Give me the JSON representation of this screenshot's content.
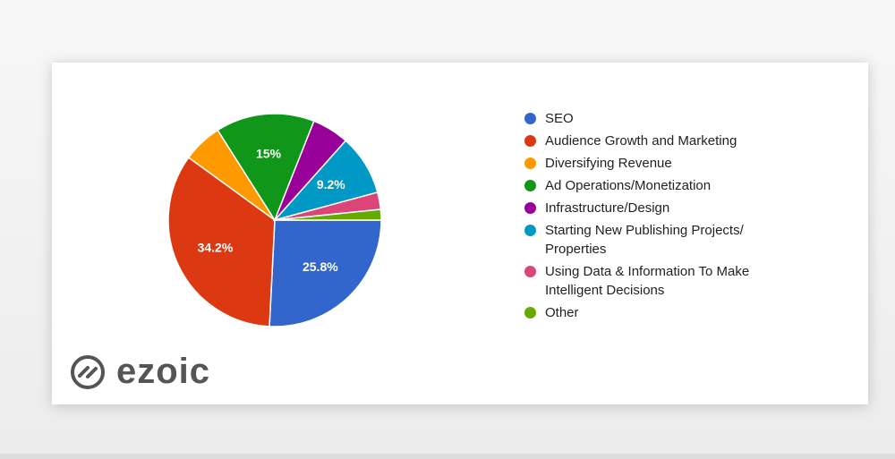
{
  "chart_data": {
    "type": "pie",
    "categories": [
      "SEO",
      "Audience Growth and Marketing",
      "Diversifying Revenue",
      "Ad Operations/Monetization",
      "Infrastructure/Design",
      "Starting New Publishing Projects/ Properties",
      "Using Data & Information To Make Intelligent Decisions",
      "Other"
    ],
    "values": [
      25.8,
      34.2,
      6,
      15,
      5.6,
      9.2,
      2.6,
      1.6
    ],
    "value_labels": [
      "25.8%",
      "34.2%",
      null,
      "15%",
      null,
      "9.2%",
      null,
      null
    ],
    "colors": [
      "#3366cc",
      "#dc3912",
      "#ff9900",
      "#109618",
      "#990099",
      "#0099c6",
      "#dd4477",
      "#66aa00"
    ],
    "legend": "right"
  },
  "logo": {
    "text": "ezoic"
  }
}
